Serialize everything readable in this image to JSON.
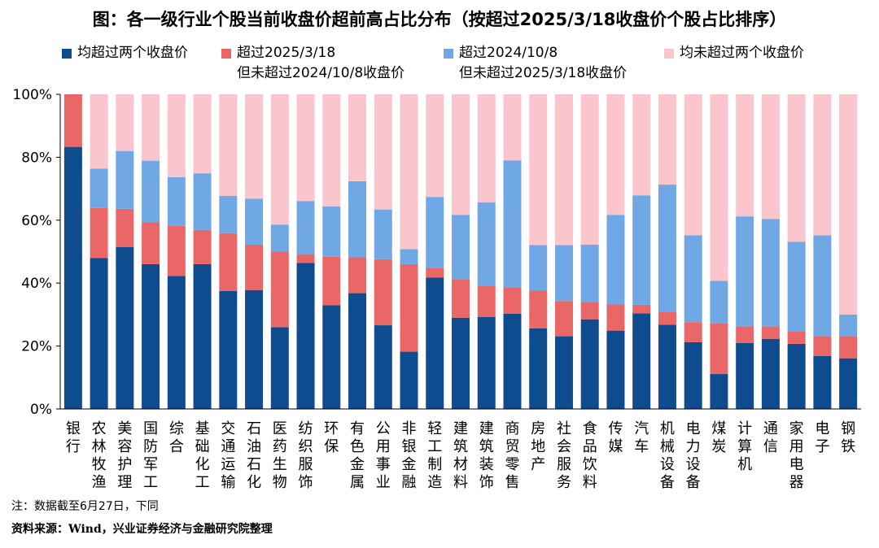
{
  "title": "图：各一级行业个股当前收盘价超前高占比分布（按超过2025/3/18收盘价个股占比排序）",
  "legend": [
    {
      "lines": [
        "均超过两个收盘价"
      ],
      "color": "#0f4c8f"
    },
    {
      "lines": [
        "超过2025/3/18",
        "但未超过2024/10/8收盘价"
      ],
      "color": "#ea6767"
    },
    {
      "lines": [
        "超过2024/10/8",
        "但未超过2025/3/18收盘价"
      ],
      "color": "#6fa8e5"
    },
    {
      "lines": [
        "均未超过两个收盘价"
      ],
      "color": "#fbc5cd"
    }
  ],
  "note": "注：数据截至6月27日，下同",
  "source": "资料来源：Wind，兴业证券经济与金融研究院整理",
  "chart_data": {
    "type": "bar",
    "stacked": true,
    "categories": [
      "银行",
      "农林牧渔",
      "美容护理",
      "国防军工",
      "综合",
      "基础化工",
      "交通运输",
      "石油石化",
      "医药生物",
      "纺织服饰",
      "环保",
      "有色金属",
      "公用事业",
      "非银金融",
      "轻工制造",
      "建筑材料",
      "建筑装饰",
      "商贸零售",
      "房地产",
      "社会服务",
      "食品饮料",
      "传媒",
      "汽车",
      "机械设备",
      "电力设备",
      "煤炭",
      "计算机",
      "通信",
      "家用电器",
      "电子",
      "钢铁"
    ],
    "series": [
      {
        "name": "均超过两个收盘价",
        "values": [
          83.3,
          48,
          51.5,
          46,
          42.3,
          46,
          37.5,
          37.8,
          26,
          46.4,
          33,
          36.8,
          26.6,
          18.2,
          41.8,
          29,
          29.2,
          30.3,
          25.6,
          23.1,
          28.5,
          24.9,
          30.4,
          26.8,
          21.2,
          11.1,
          21,
          22.3,
          20.7,
          16.8,
          16.1
        ]
      },
      {
        "name": "超过2025/3/18 但未超过2024/10/8收盘价",
        "values": [
          16.7,
          15.9,
          12.1,
          13.4,
          15.9,
          10.9,
          18.4,
          14.4,
          24,
          2.8,
          15.4,
          11.4,
          21,
          27.8,
          3.1,
          12.3,
          10,
          8.2,
          12,
          11.2,
          5.5,
          8.3,
          2.7,
          4.1,
          6.4,
          16.2,
          5.2,
          3.9,
          4,
          6.4,
          6.9
        ]
      },
      {
        "name": "超过2024/10/8 但未超过2025/3/18收盘价",
        "values": [
          0,
          12.5,
          18.4,
          19.5,
          15.5,
          18,
          11.8,
          14.6,
          8.6,
          16.9,
          16,
          24.2,
          15.8,
          4.8,
          22.5,
          20.4,
          26.5,
          40.5,
          14.5,
          17.8,
          18.2,
          28.5,
          34.8,
          40.4,
          27.6,
          13.4,
          35,
          34.2,
          28.4,
          32,
          7
        ]
      },
      {
        "name": "均未超过两个收盘价",
        "values": [
          0,
          23.6,
          18,
          21.1,
          26.3,
          25.1,
          32.3,
          33.2,
          41.4,
          33.9,
          35.6,
          27.6,
          36.6,
          49.2,
          32.6,
          38.3,
          34.3,
          21,
          47.9,
          47.9,
          47.8,
          38.3,
          32.1,
          28.7,
          44.8,
          59.3,
          38.8,
          39.6,
          46.9,
          44.8,
          70
        ]
      }
    ],
    "ylim": [
      0,
      100
    ],
    "yticks": [
      "0%",
      "20%",
      "40%",
      "60%",
      "80%",
      "100%"
    ],
    "grid": false,
    "legend_position": "top"
  }
}
